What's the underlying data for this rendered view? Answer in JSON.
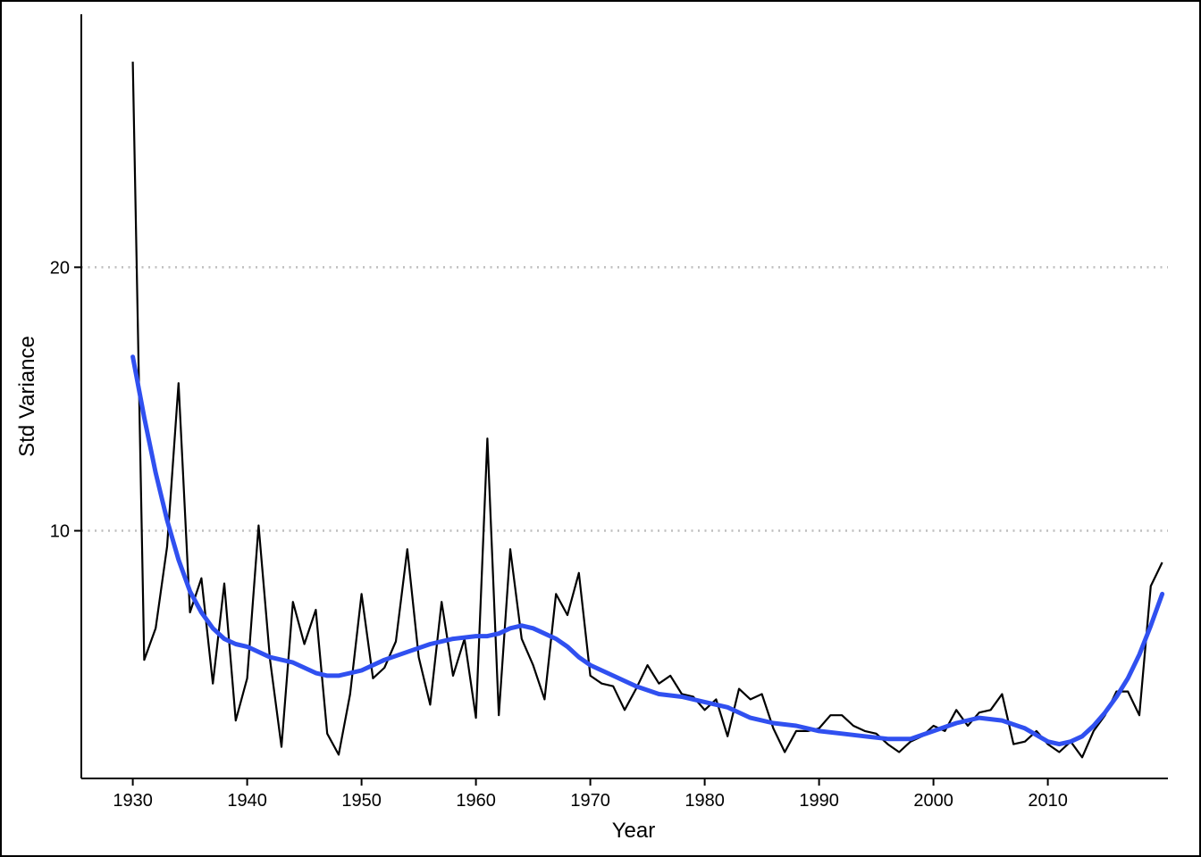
{
  "chart_data": {
    "type": "line",
    "title": "",
    "xlabel": "Year",
    "ylabel": "Std Variance",
    "xlim": [
      1925.5,
      2020.5
    ],
    "ylim": [
      0.6,
      29.6
    ],
    "x_ticks": [
      1930,
      1940,
      1950,
      1960,
      1970,
      1980,
      1990,
      2000,
      2010
    ],
    "y_ticks": [
      10,
      20
    ],
    "grid": "horizontal dotted at major y ticks",
    "legend": "none",
    "colors": {
      "raw": "#000000",
      "smooth": "#3050F0",
      "grid": "#BEBEBE"
    },
    "series": [
      {
        "role": "observed",
        "x": [
          1930,
          1931,
          1932,
          1933,
          1934,
          1935,
          1936,
          1937,
          1938,
          1939,
          1940,
          1941,
          1942,
          1943,
          1944,
          1945,
          1946,
          1947,
          1948,
          1949,
          1950,
          1951,
          1952,
          1953,
          1954,
          1955,
          1956,
          1957,
          1958,
          1959,
          1960,
          1961,
          1962,
          1963,
          1964,
          1965,
          1966,
          1967,
          1968,
          1969,
          1970,
          1971,
          1972,
          1973,
          1974,
          1975,
          1976,
          1977,
          1978,
          1979,
          1980,
          1981,
          1982,
          1983,
          1984,
          1985,
          1986,
          1987,
          1988,
          1989,
          1990,
          1991,
          1992,
          1993,
          1994,
          1995,
          1996,
          1997,
          1998,
          1999,
          2000,
          2001,
          2002,
          2003,
          2004,
          2005,
          2006,
          2007,
          2008,
          2009,
          2010,
          2011,
          2012,
          2013,
          2014,
          2015,
          2016,
          2017,
          2018,
          2019,
          2020
        ],
        "values": [
          27.8,
          5.1,
          6.3,
          9.4,
          15.6,
          6.9,
          8.2,
          4.2,
          8.0,
          2.8,
          4.4,
          10.2,
          5.1,
          1.8,
          7.3,
          5.7,
          7.0,
          2.3,
          1.5,
          3.8,
          7.6,
          4.4,
          4.8,
          5.8,
          9.3,
          5.2,
          3.4,
          7.3,
          4.5,
          5.9,
          2.9,
          13.5,
          3.0,
          9.3,
          5.9,
          4.9,
          3.6,
          7.6,
          6.8,
          8.4,
          4.5,
          4.2,
          4.1,
          3.2,
          4.0,
          4.9,
          4.2,
          4.5,
          3.8,
          3.7,
          3.2,
          3.6,
          2.2,
          4.0,
          3.6,
          3.8,
          2.5,
          1.6,
          2.4,
          2.4,
          2.5,
          3.0,
          3.0,
          2.6,
          2.4,
          2.3,
          1.9,
          1.6,
          2.0,
          2.2,
          2.6,
          2.4,
          3.2,
          2.6,
          3.1,
          3.2,
          3.8,
          1.9,
          2.0,
          2.4,
          1.9,
          1.6,
          2.0,
          1.4,
          2.4,
          3.0,
          3.9,
          3.9,
          3.0,
          7.9,
          8.8
        ]
      },
      {
        "role": "smoothed",
        "x": [
          1930,
          1931,
          1932,
          1933,
          1934,
          1935,
          1936,
          1937,
          1938,
          1939,
          1940,
          1942,
          1944,
          1945,
          1946,
          1947,
          1948,
          1950,
          1952,
          1954,
          1956,
          1958,
          1960,
          1961,
          1962,
          1963,
          1964,
          1965,
          1966,
          1967,
          1968,
          1969,
          1970,
          1972,
          1974,
          1976,
          1978,
          1980,
          1982,
          1984,
          1986,
          1988,
          1990,
          1992,
          1994,
          1996,
          1998,
          2000,
          2002,
          2004,
          2006,
          2008,
          2010,
          2011,
          2012,
          2013,
          2014,
          2015,
          2016,
          2017,
          2018,
          2019,
          2020
        ],
        "values": [
          16.6,
          14.3,
          12.2,
          10.4,
          8.9,
          7.7,
          6.9,
          6.3,
          5.9,
          5.7,
          5.6,
          5.2,
          5.0,
          4.8,
          4.6,
          4.5,
          4.5,
          4.7,
          5.1,
          5.4,
          5.7,
          5.9,
          6.0,
          6.0,
          6.1,
          6.3,
          6.4,
          6.3,
          6.1,
          5.9,
          5.6,
          5.2,
          4.9,
          4.5,
          4.1,
          3.8,
          3.7,
          3.5,
          3.3,
          2.9,
          2.7,
          2.6,
          2.4,
          2.3,
          2.2,
          2.1,
          2.1,
          2.4,
          2.7,
          2.9,
          2.8,
          2.5,
          2.0,
          1.9,
          2.0,
          2.2,
          2.6,
          3.1,
          3.7,
          4.4,
          5.3,
          6.4,
          7.6
        ]
      }
    ]
  }
}
